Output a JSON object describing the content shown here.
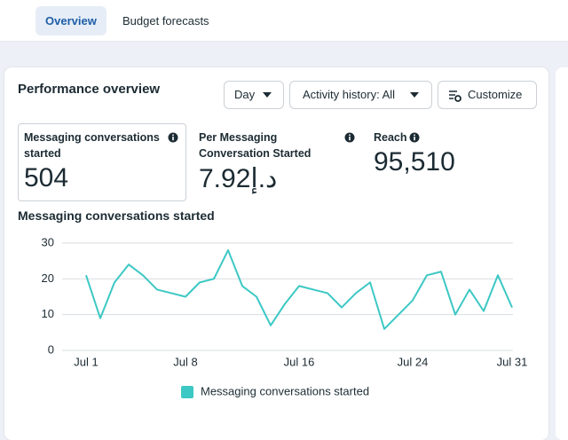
{
  "tabs": [
    "Overview",
    "Budget forecasts"
  ],
  "card": {
    "title": "Performance overview",
    "controls": [
      "Day",
      "Activity history: All",
      "Customize"
    ]
  },
  "metrics": [
    {
      "label": "Messaging conversations started",
      "value": "504"
    },
    {
      "label": "Per Messaging Conversation Started",
      "value": "7.92د.إ"
    },
    {
      "label": "Reach",
      "value": "95,510"
    }
  ],
  "chart_data": {
    "type": "line",
    "title": "Messaging conversations started",
    "categories": [
      "Jul 1",
      null,
      null,
      null,
      null,
      null,
      null,
      "Jul 8",
      null,
      null,
      null,
      null,
      null,
      null,
      null,
      "Jul 16",
      null,
      null,
      null,
      null,
      null,
      null,
      null,
      "Jul 24",
      null,
      null,
      null,
      null,
      null,
      null,
      "Jul 31"
    ],
    "series": [
      {
        "name": "Messaging conversations started",
        "color": "#3cc8c4",
        "values": [
          21,
          9,
          19,
          24,
          21,
          17,
          16,
          15,
          19,
          20,
          28,
          18,
          15,
          7,
          13,
          18,
          17,
          16,
          12,
          16,
          19,
          6,
          10,
          14,
          21,
          22,
          10,
          17,
          11,
          21,
          12
        ]
      }
    ],
    "ylim": [
      0,
      30
    ],
    "yticks": [
      0,
      10,
      20,
      30
    ],
    "grid": true,
    "legend": "bottom"
  }
}
